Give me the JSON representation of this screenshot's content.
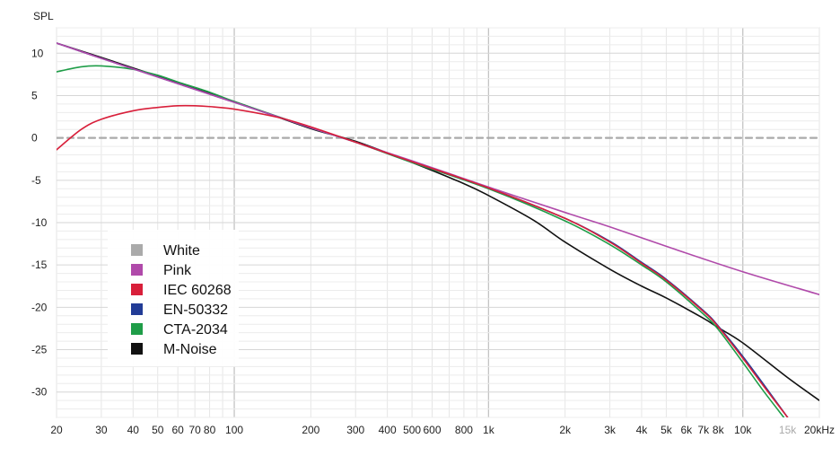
{
  "chart_data": {
    "type": "line",
    "ylabel": "SPL",
    "x_scale": "log",
    "xlim": [
      20,
      20000
    ],
    "ylim": [
      -33,
      13
    ],
    "grid": true,
    "legend_position": "left-middle",
    "x_ticks": [
      {
        "value": 20,
        "label": "20"
      },
      {
        "value": 30,
        "label": "30"
      },
      {
        "value": 40,
        "label": "40"
      },
      {
        "value": 50,
        "label": "50"
      },
      {
        "value": 60,
        "label": "60"
      },
      {
        "value": 70,
        "label": "70"
      },
      {
        "value": 80,
        "label": "80"
      },
      {
        "value": 100,
        "label": "100"
      },
      {
        "value": 200,
        "label": "200"
      },
      {
        "value": 300,
        "label": "300"
      },
      {
        "value": 400,
        "label": "400"
      },
      {
        "value": 500,
        "label": "500"
      },
      {
        "value": 600,
        "label": "600"
      },
      {
        "value": 800,
        "label": "800"
      },
      {
        "value": 1000,
        "label": "1k"
      },
      {
        "value": 2000,
        "label": "2k"
      },
      {
        "value": 3000,
        "label": "3k"
      },
      {
        "value": 4000,
        "label": "4k"
      },
      {
        "value": 5000,
        "label": "5k"
      },
      {
        "value": 6000,
        "label": "6k"
      },
      {
        "value": 7000,
        "label": "7k"
      },
      {
        "value": 8000,
        "label": "8k"
      },
      {
        "value": 10000,
        "label": "10k"
      },
      {
        "value": 15000,
        "label": "15k",
        "muted": true
      },
      {
        "value": 20000,
        "label": "20kHz"
      }
    ],
    "y_ticks": [
      10,
      5,
      0,
      -5,
      -10,
      -15,
      -20,
      -25,
      -30
    ],
    "series": [
      {
        "name": "White",
        "color": "#aaaaaa",
        "dashed": true,
        "x": [
          20,
          20000
        ],
        "y": [
          0,
          0
        ]
      },
      {
        "name": "Pink",
        "color": "#b04aaa",
        "x": [
          20,
          30,
          50,
          100,
          200,
          300,
          500,
          1000,
          2000,
          3000,
          5000,
          10000,
          20000
        ],
        "y": [
          11.2,
          9.4,
          7.2,
          4.2,
          1.2,
          -0.5,
          -2.7,
          -5.8,
          -8.8,
          -10.5,
          -12.8,
          -15.8,
          -18.5
        ]
      },
      {
        "name": "IEC 60268",
        "color": "#d81f3a",
        "x": [
          20,
          25,
          30,
          40,
          50,
          60,
          70,
          80,
          100,
          150,
          200,
          300,
          500,
          1000,
          2000,
          3000,
          4000,
          5000,
          7000,
          8000,
          10000,
          12000,
          15000
        ],
        "y": [
          -1.4,
          1.0,
          2.2,
          3.2,
          3.6,
          3.8,
          3.8,
          3.7,
          3.4,
          2.4,
          1.3,
          -0.5,
          -2.8,
          -5.9,
          -9.5,
          -12.3,
          -14.8,
          -16.8,
          -20.5,
          -22.3,
          -26.0,
          -29.2,
          -33.0
        ]
      },
      {
        "name": "EN-50332",
        "color": "#223c96",
        "x": [
          20,
          30,
          50,
          100,
          200,
          300,
          500,
          1000,
          2000,
          3000,
          4000,
          5000,
          7000,
          8000,
          10000,
          12000,
          15000
        ],
        "y": [
          11.2,
          9.4,
          7.2,
          4.2,
          1.2,
          -0.5,
          -2.8,
          -5.9,
          -9.5,
          -12.2,
          -14.7,
          -16.7,
          -20.4,
          -22.2,
          -25.8,
          -29.0,
          -33.0
        ]
      },
      {
        "name": "CTA-2034",
        "color": "#1f9d48",
        "x": [
          20,
          25,
          30,
          40,
          50,
          60,
          80,
          100,
          200,
          300,
          500,
          1000,
          2000,
          3000,
          4000,
          5000,
          7000,
          8000,
          10000,
          12000,
          14500
        ],
        "y": [
          7.8,
          8.4,
          8.5,
          8.1,
          7.4,
          6.6,
          5.4,
          4.3,
          1.2,
          -0.5,
          -2.9,
          -6.0,
          -9.8,
          -12.6,
          -15.0,
          -17.0,
          -20.8,
          -22.6,
          -26.5,
          -29.8,
          -33.0
        ]
      },
      {
        "name": "M-Noise",
        "color": "#111111",
        "x": [
          20,
          30,
          50,
          100,
          200,
          300,
          500,
          800,
          1000,
          1500,
          2000,
          3000,
          4000,
          5000,
          7000,
          8000,
          10000,
          15000,
          20000
        ],
        "y": [
          11.2,
          9.5,
          7.3,
          4.3,
          1.1,
          -0.4,
          -2.9,
          -5.4,
          -6.8,
          -9.7,
          -12.3,
          -15.5,
          -17.5,
          -18.9,
          -21.3,
          -22.4,
          -24.2,
          -28.3,
          -31.0
        ]
      }
    ]
  }
}
